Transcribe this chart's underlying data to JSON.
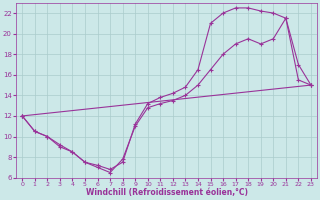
{
  "xlabel": "Windchill (Refroidissement éolien,°C)",
  "bg_color": "#cce8e8",
  "grid_color": "#aacccc",
  "line_color": "#993399",
  "xlim": [
    -0.5,
    23.5
  ],
  "ylim": [
    6,
    23
  ],
  "xticks": [
    0,
    1,
    2,
    3,
    4,
    5,
    6,
    7,
    8,
    9,
    10,
    11,
    12,
    13,
    14,
    15,
    16,
    17,
    18,
    19,
    20,
    21,
    22,
    23
  ],
  "yticks": [
    6,
    8,
    10,
    12,
    14,
    16,
    18,
    20,
    22
  ],
  "line1_x": [
    0,
    1,
    2,
    3,
    4,
    5,
    6,
    7,
    8,
    9,
    10,
    11,
    12,
    13,
    14,
    15,
    16,
    17,
    18,
    19,
    20,
    21,
    22,
    23
  ],
  "line1_y": [
    12.0,
    10.5,
    10.0,
    9.2,
    8.5,
    7.5,
    7.2,
    6.8,
    7.5,
    11.2,
    13.2,
    13.8,
    14.2,
    14.8,
    16.5,
    21.0,
    22.0,
    22.5,
    22.5,
    22.2,
    22.0,
    21.5,
    15.5,
    15.0
  ],
  "line2_x": [
    0,
    1,
    2,
    3,
    4,
    5,
    6,
    7,
    8,
    9,
    10,
    11,
    12,
    13,
    14,
    15,
    16,
    17,
    18,
    19,
    20,
    21,
    22,
    23
  ],
  "line2_y": [
    12.0,
    10.5,
    10.0,
    9.0,
    8.5,
    7.5,
    7.0,
    6.5,
    7.8,
    11.0,
    12.8,
    13.2,
    13.5,
    14.0,
    15.0,
    16.5,
    18.0,
    19.0,
    19.5,
    19.0,
    19.5,
    21.5,
    17.0,
    15.0
  ],
  "line3_x": [
    0,
    23
  ],
  "line3_y": [
    12.0,
    15.0
  ]
}
